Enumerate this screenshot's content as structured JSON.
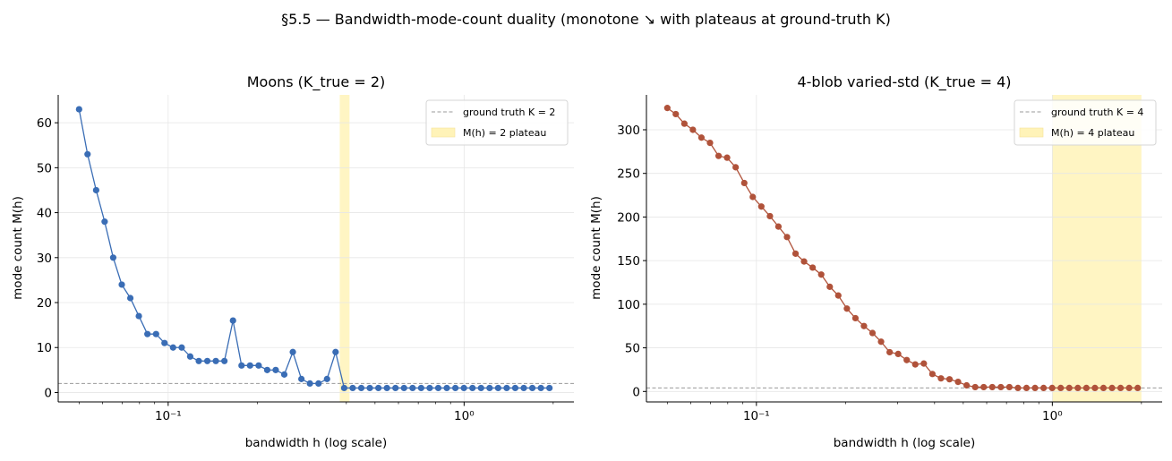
{
  "figure": {
    "suptitle": "§5.5 — Bandwidth-mode-count duality (monotone ↘ with plateaus at ground-truth K)",
    "colors": {
      "background": "#ffffff",
      "grid": "#e6e6e6",
      "spine": "#000000",
      "truth_line": "#999999",
      "plateau": "#fff3b8"
    }
  },
  "chart_data": [
    {
      "type": "line",
      "title": "Moons (K_true = 2)",
      "xlabel": "bandwidth h (log scale)",
      "ylabel": "mode count M(h)",
      "xscale": "log",
      "xlim": [
        0.0425,
        2.35
      ],
      "ylim": [
        -2.1,
        66.2
      ],
      "xticks": [
        0.1,
        1
      ],
      "xtick_labels": [
        "10⁻¹",
        "10⁰"
      ],
      "yticks": [
        0,
        10,
        20,
        30,
        40,
        50,
        60
      ],
      "grid": true,
      "legend": {
        "placement": "top-right",
        "entries": [
          "ground truth K = 2",
          "M(h) = 2 plateau"
        ]
      },
      "ground_truth_K": 2,
      "plateau": [
        0.38,
        0.41
      ],
      "series": [
        {
          "color": "#3a6db5",
          "x": [
            0.05,
            0.0534,
            0.0571,
            0.061,
            0.0652,
            0.0697,
            0.0745,
            0.0796,
            0.0851,
            0.091,
            0.0972,
            0.1039,
            0.1111,
            0.1187,
            0.1269,
            0.1356,
            0.1449,
            0.1549,
            0.1656,
            0.177,
            0.1891,
            0.2022,
            0.2161,
            0.2309,
            0.2468,
            0.2638,
            0.282,
            0.3013,
            0.3221,
            0.3442,
            0.3679,
            0.3933,
            0.4203,
            0.4493,
            0.4802,
            0.5133,
            0.5486,
            0.5863,
            0.6267,
            0.6698,
            0.7159,
            0.7652,
            0.8178,
            0.8741,
            0.9343,
            0.9986,
            1.0673,
            1.1408,
            1.2193,
            1.3032,
            1.3929,
            1.4887,
            1.5912,
            1.7007,
            1.8177,
            1.9428
          ],
          "y": [
            63,
            53,
            45,
            38,
            30,
            24,
            21,
            17,
            13,
            13,
            11,
            10,
            10,
            8,
            7,
            7,
            7,
            7,
            16,
            6,
            6,
            6,
            5,
            5,
            4,
            9,
            3,
            2,
            2,
            3,
            9,
            1,
            1,
            1,
            1,
            1,
            1,
            1,
            1,
            1,
            1,
            1,
            1,
            1,
            1,
            1,
            1,
            1,
            1,
            1,
            1,
            1,
            1,
            1,
            1,
            1
          ]
        }
      ]
    },
    {
      "type": "line",
      "title": "4-blob varied-std (K_true = 4)",
      "xlabel": "bandwidth h (log scale)",
      "ylabel": "mode count M(h)",
      "xscale": "log",
      "xlim": [
        0.0425,
        2.35
      ],
      "ylim": [
        -12,
        340
      ],
      "xticks": [
        0.1,
        1
      ],
      "xtick_labels": [
        "10⁻¹",
        "10⁰"
      ],
      "yticks": [
        0,
        50,
        100,
        150,
        200,
        250,
        300
      ],
      "grid": true,
      "legend": {
        "placement": "top-right",
        "entries": [
          "ground truth K = 4",
          "M(h) = 4 plateau"
        ]
      },
      "ground_truth_K": 4,
      "plateau": [
        1.0,
        2.0
      ],
      "series": [
        {
          "color": "#b0523a",
          "x": [
            0.05,
            0.0534,
            0.0571,
            0.061,
            0.0652,
            0.0697,
            0.0745,
            0.0796,
            0.0851,
            0.091,
            0.0972,
            0.1039,
            0.1111,
            0.1187,
            0.1269,
            0.1356,
            0.1449,
            0.1549,
            0.1656,
            0.177,
            0.1891,
            0.2022,
            0.2161,
            0.2309,
            0.2468,
            0.2638,
            0.282,
            0.3013,
            0.3221,
            0.3442,
            0.3679,
            0.3933,
            0.4203,
            0.4493,
            0.4802,
            0.5133,
            0.5486,
            0.5863,
            0.6267,
            0.6698,
            0.7159,
            0.7652,
            0.8178,
            0.8741,
            0.9343,
            0.9986,
            1.0673,
            1.1408,
            1.2193,
            1.3032,
            1.3929,
            1.4887,
            1.5912,
            1.7007,
            1.8177,
            1.9428
          ],
          "y": [
            325,
            318,
            307,
            300,
            291,
            285,
            270,
            268,
            257,
            239,
            223,
            212,
            201,
            189,
            177,
            158,
            149,
            142,
            134,
            120,
            110,
            95,
            84,
            75,
            67,
            57,
            45,
            43,
            36,
            31,
            32,
            20,
            15,
            14,
            11,
            7,
            5,
            5,
            5,
            5,
            5,
            4,
            4,
            4,
            4,
            4,
            4,
            4,
            4,
            4,
            4,
            4,
            4,
            4,
            4,
            4
          ]
        }
      ]
    }
  ]
}
